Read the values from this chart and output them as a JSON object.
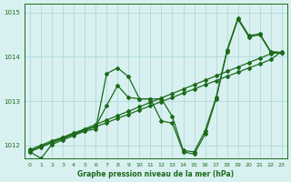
{
  "title": "Graphe pression niveau de la mer (hPa)",
  "bg_color": "#d8f0f0",
  "grid_color": "#aad4d4",
  "line_color": "#1a6b1a",
  "x_min": 0,
  "x_max": 23,
  "y_min": 1011.7,
  "y_max": 1015.2,
  "yticks": [
    1012,
    1013,
    1014,
    1015
  ],
  "s1": [
    1011.85,
    1011.7,
    1012.02,
    1012.12,
    1012.22,
    1012.32,
    1012.37,
    1013.62,
    1013.75,
    1013.55,
    1013.05,
    1013.05,
    1012.55,
    1012.5,
    1011.85,
    1011.8,
    1012.25,
    1013.05,
    1014.12,
    1014.85,
    1014.45,
    1014.5,
    1014.1,
    1014.1
  ],
  "s2": [
    1011.87,
    1011.97,
    1012.07,
    1012.17,
    1012.27,
    1012.37,
    1012.47,
    1012.57,
    1012.67,
    1012.77,
    1012.87,
    1012.97,
    1013.07,
    1013.17,
    1013.27,
    1013.37,
    1013.47,
    1013.57,
    1013.67,
    1013.77,
    1013.87,
    1013.97,
    1014.07,
    1014.1
  ],
  "s3": [
    1011.9,
    1012.0,
    1012.1,
    1012.18,
    1012.28,
    1012.35,
    1012.43,
    1012.9,
    1013.35,
    1013.08,
    1013.05,
    1013.05,
    1013.05,
    1012.65,
    1011.88,
    1011.85,
    1012.33,
    1013.08,
    1014.15,
    1014.88,
    1014.48,
    1014.52,
    1014.12,
    1014.1
  ],
  "s4": [
    1011.85,
    1011.96,
    1012.06,
    1012.15,
    1012.25,
    1012.34,
    1012.42,
    1012.51,
    1012.61,
    1012.7,
    1012.8,
    1012.89,
    1012.99,
    1013.08,
    1013.18,
    1013.27,
    1013.37,
    1013.46,
    1013.56,
    1013.65,
    1013.75,
    1013.84,
    1013.94,
    1014.12
  ]
}
